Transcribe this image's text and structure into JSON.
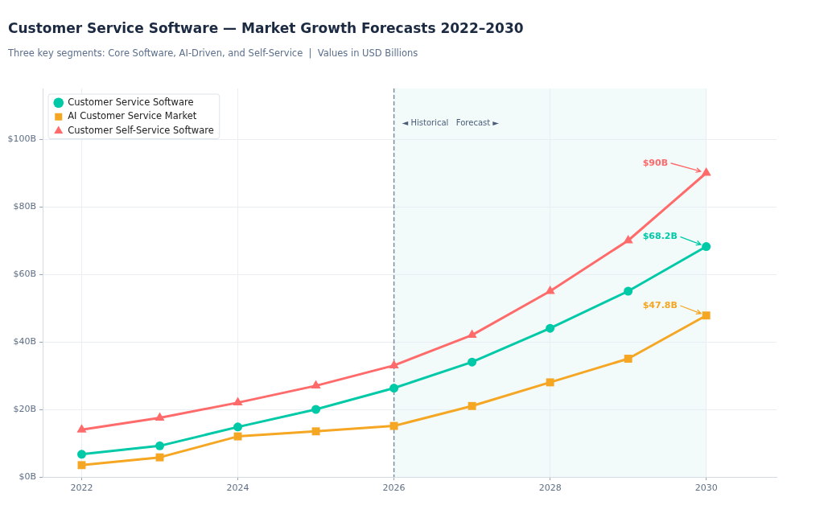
{
  "chart_data": {
    "type": "line",
    "title": "Customer Service Software — Market Growth Forecasts 2022–2030",
    "subtitle": "Three key segments: Core Software, AI-Driven, and Self-Service  |  Values in USD Billions",
    "x": [
      2022,
      2023,
      2024,
      2025,
      2026,
      2027,
      2028,
      2029,
      2030
    ],
    "xlim": [
      2021.5,
      2030.9
    ],
    "xticks": [
      2022,
      2024,
      2026,
      2028,
      2030
    ],
    "ylim": [
      0,
      115
    ],
    "yticks": [
      {
        "value": 0,
        "label": "$0B"
      },
      {
        "value": 20,
        "label": "$20B"
      },
      {
        "value": 40,
        "label": "$40B"
      },
      {
        "value": 60,
        "label": "$60B"
      },
      {
        "value": 80,
        "label": "$80B"
      },
      {
        "value": 100,
        "label": "$100B"
      }
    ],
    "grid": true,
    "legend": "top left",
    "series": [
      {
        "name": "Customer Service Software",
        "color": "#00c9a7",
        "marker": "circle",
        "values": [
          6.7,
          9.2,
          14.8,
          20,
          26.3,
          34,
          44,
          55,
          68.2
        ],
        "value_labels": [
          null,
          null,
          null,
          null,
          null,
          null,
          null,
          null,
          "$68.2B"
        ]
      },
      {
        "name": "AI Customer Service Market",
        "color": "#f5a623",
        "marker": "square",
        "values": [
          3.5,
          5.8,
          12,
          13.5,
          15.1,
          21,
          28,
          35,
          47.8
        ],
        "value_labels": [
          null,
          null,
          null,
          null,
          null,
          null,
          null,
          null,
          "$47.8B"
        ]
      },
      {
        "name": "Customer Self-Service Software",
        "color": "#ff6b6b",
        "marker": "triangle",
        "values": [
          14,
          17.5,
          22,
          27,
          33,
          42,
          55,
          70,
          90
        ],
        "value_labels": [
          null,
          null,
          null,
          null,
          null,
          null,
          null,
          null,
          "$90B"
        ]
      }
    ],
    "ref_lines": [
      {
        "axis": "x",
        "value": 2026,
        "label": "◄ Historical   Forecast ►",
        "color": "#7d8da1",
        "line_style": "dashed"
      }
    ],
    "bands": [
      {
        "axis": "x",
        "from": 2026,
        "to": 2030,
        "color": "#f2fafa"
      }
    ]
  }
}
